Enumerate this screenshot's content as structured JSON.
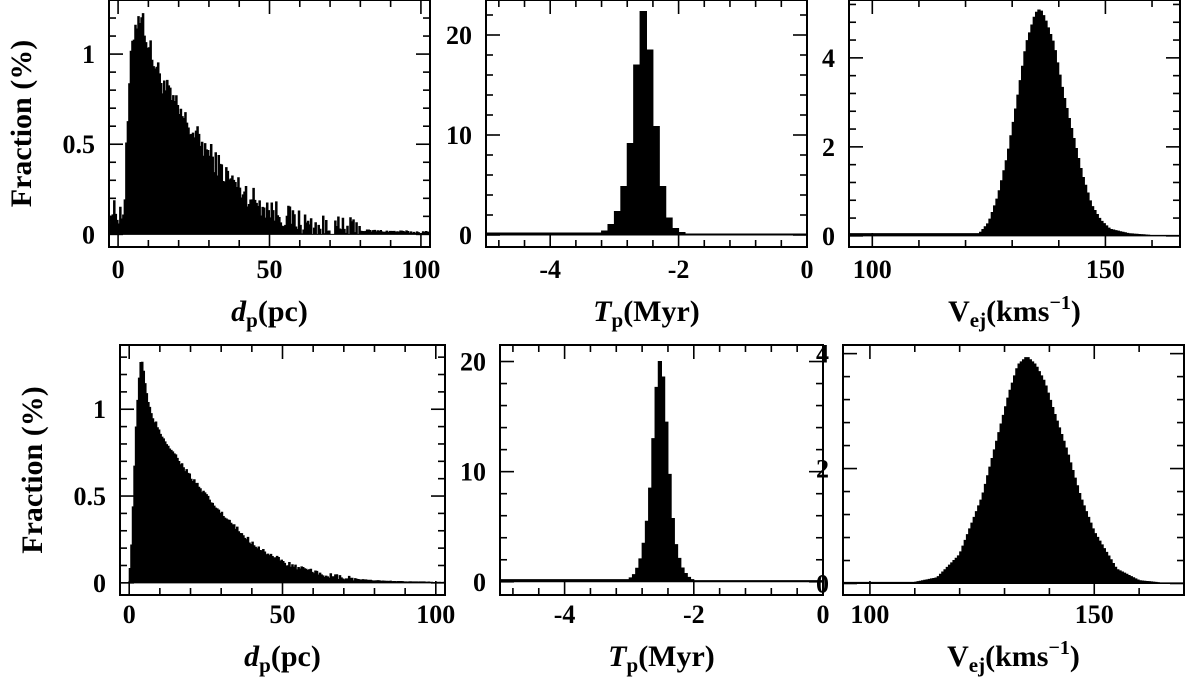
{
  "chart_data": [
    {
      "type": "bar",
      "panel": "top-left",
      "xlabel": {
        "main": "d",
        "sub": "p",
        "unit": "(pc)",
        "main_italic": true
      },
      "ylabel": "Fraction (%)",
      "xlim": [
        -3,
        103
      ],
      "ylim": [
        -0.07,
        1.3
      ],
      "xticks": [
        0,
        50,
        100
      ],
      "yticks": [
        0,
        0.5,
        1
      ],
      "xtick_labels": [
        "0",
        "50",
        "100"
      ],
      "ytick_labels": [
        "0",
        "0.5",
        "1"
      ],
      "bin_width": 0.5,
      "x": [
        2,
        3,
        4,
        5,
        6,
        7,
        8,
        9,
        10,
        12,
        14,
        16,
        18,
        20,
        25,
        30,
        35,
        40,
        45,
        50,
        55,
        60,
        65,
        70,
        80,
        90,
        100
      ],
      "values": [
        0.12,
        0.55,
        0.9,
        1.1,
        1.18,
        1.22,
        1.2,
        1.13,
        1.05,
        0.95,
        0.87,
        0.8,
        0.74,
        0.68,
        0.56,
        0.45,
        0.34,
        0.26,
        0.19,
        0.14,
        0.1,
        0.07,
        0.04,
        0.03,
        0.02,
        0.015,
        0.01
      ],
      "noise": 0.07
    },
    {
      "type": "bar",
      "panel": "top-middle",
      "xlabel": {
        "main": "T",
        "sub": "p",
        "unit": "(Myr)",
        "main_italic": true
      },
      "ylabel": "",
      "xlim": [
        -5,
        0
      ],
      "ylim": [
        -1.2,
        23.5
      ],
      "xticks": [
        -4,
        -2,
        0
      ],
      "yticks": [
        0,
        10,
        20
      ],
      "xtick_labels": [
        "-4",
        "-2",
        "0"
      ],
      "ytick_labels": [
        "0",
        "10",
        "20"
      ],
      "bin_width": 0.1,
      "x": [
        -3.2,
        -3.1,
        -3.0,
        -2.9,
        -2.8,
        -2.7,
        -2.6,
        -2.5,
        -2.4,
        -2.3,
        -2.2,
        -2.1,
        -2.0,
        -1.9
      ],
      "values": [
        0.2,
        0.6,
        1.5,
        3.2,
        6.5,
        11.8,
        22.2,
        22.5,
        14.5,
        7.2,
        2.5,
        0.9,
        0.4,
        0.1
      ],
      "noise": 0
    },
    {
      "type": "bar",
      "panel": "top-right",
      "xlabel": {
        "main": "V",
        "sub": "ej",
        "unit": "(kms",
        "sup": "−1",
        "close": ")",
        "main_italic": false
      },
      "ylabel": "",
      "xlim": [
        95,
        166
      ],
      "ylim": [
        -0.25,
        5.3
      ],
      "xticks": [
        100,
        150
      ],
      "yticks": [
        0,
        2,
        4
      ],
      "xtick_labels": [
        "100",
        "150"
      ],
      "ytick_labels": [
        "0",
        "2",
        "4"
      ],
      "bin_width": 0.5,
      "x": [
        123,
        125,
        127,
        129,
        131,
        133,
        135,
        136,
        137,
        139,
        141,
        143,
        145,
        147,
        149,
        151,
        155,
        160
      ],
      "values": [
        0.05,
        0.3,
        0.9,
        1.8,
        3.0,
        4.3,
        5.0,
        5.1,
        4.9,
        4.3,
        3.2,
        2.3,
        1.4,
        0.7,
        0.35,
        0.15,
        0.05,
        0.01
      ],
      "noise": 0
    },
    {
      "type": "bar",
      "panel": "bottom-left",
      "xlabel": {
        "main": "d",
        "sub": "p",
        "unit": "(pc)",
        "main_italic": true
      },
      "ylabel": "Fraction (%)",
      "xlim": [
        -3,
        103
      ],
      "ylim": [
        -0.07,
        1.37
      ],
      "xticks": [
        0,
        50,
        100
      ],
      "yticks": [
        0,
        0.5,
        1
      ],
      "xtick_labels": [
        "0",
        "50",
        "100"
      ],
      "ytick_labels": [
        "0",
        "0.5",
        "1"
      ],
      "bin_width": 0.5,
      "x": [
        0,
        1,
        2,
        3,
        4,
        5,
        6,
        7,
        8,
        10,
        12,
        14,
        16,
        18,
        20,
        25,
        30,
        35,
        40,
        45,
        50,
        55,
        60,
        65,
        70,
        80,
        90,
        100
      ],
      "values": [
        0.0,
        0.3,
        0.8,
        1.15,
        1.3,
        1.18,
        1.05,
        0.98,
        0.94,
        0.87,
        0.81,
        0.76,
        0.71,
        0.66,
        0.61,
        0.5,
        0.4,
        0.31,
        0.23,
        0.17,
        0.12,
        0.085,
        0.06,
        0.04,
        0.025,
        0.012,
        0.006,
        0.003
      ],
      "noise": 0.015
    },
    {
      "type": "bar",
      "panel": "bottom-middle",
      "xlabel": {
        "main": "T",
        "sub": "p",
        "unit": "(Myr)",
        "main_italic": true
      },
      "ylabel": "",
      "xlim": [
        -5,
        0
      ],
      "ylim": [
        -1.2,
        21.5
      ],
      "xticks": [
        -4,
        -2,
        0
      ],
      "yticks": [
        0,
        10,
        20
      ],
      "xtick_labels": [
        "-4",
        "-2",
        "0"
      ],
      "ytick_labels": [
        "0",
        "10",
        "20"
      ],
      "bin_width": 0.05,
      "x": [
        -3.0,
        -2.9,
        -2.8,
        -2.7,
        -2.65,
        -2.6,
        -2.55,
        -2.5,
        -2.45,
        -2.4,
        -2.35,
        -2.3,
        -2.2,
        -2.1,
        -2.0
      ],
      "values": [
        0.2,
        0.8,
        2.5,
        6.5,
        10.5,
        15.5,
        19.8,
        20.2,
        17.0,
        12.0,
        7.5,
        4.0,
        1.5,
        0.5,
        0.1
      ],
      "noise": 0
    },
    {
      "type": "bar",
      "panel": "bottom-right",
      "xlabel": {
        "main": "V",
        "sub": "ej",
        "unit": "(kms",
        "sup": "−1",
        "close": ")",
        "main_italic": false
      },
      "ylabel": "",
      "xlim": [
        94,
        170
      ],
      "ylim": [
        -0.2,
        4.15
      ],
      "xticks": [
        100,
        150
      ],
      "yticks": [
        0,
        2,
        4
      ],
      "xtick_labels": [
        "100",
        "150"
      ],
      "ytick_labels": [
        "0",
        "2",
        "4"
      ],
      "bin_width": 0.5,
      "x": [
        110,
        115,
        120,
        125,
        128,
        131,
        133,
        135,
        137,
        139,
        141,
        144,
        147,
        150,
        155,
        160,
        165
      ],
      "values": [
        0.02,
        0.1,
        0.5,
        1.5,
        2.4,
        3.3,
        3.8,
        3.95,
        3.8,
        3.5,
        3.0,
        2.3,
        1.5,
        0.9,
        0.25,
        0.05,
        0.01
      ],
      "noise": 0
    }
  ]
}
